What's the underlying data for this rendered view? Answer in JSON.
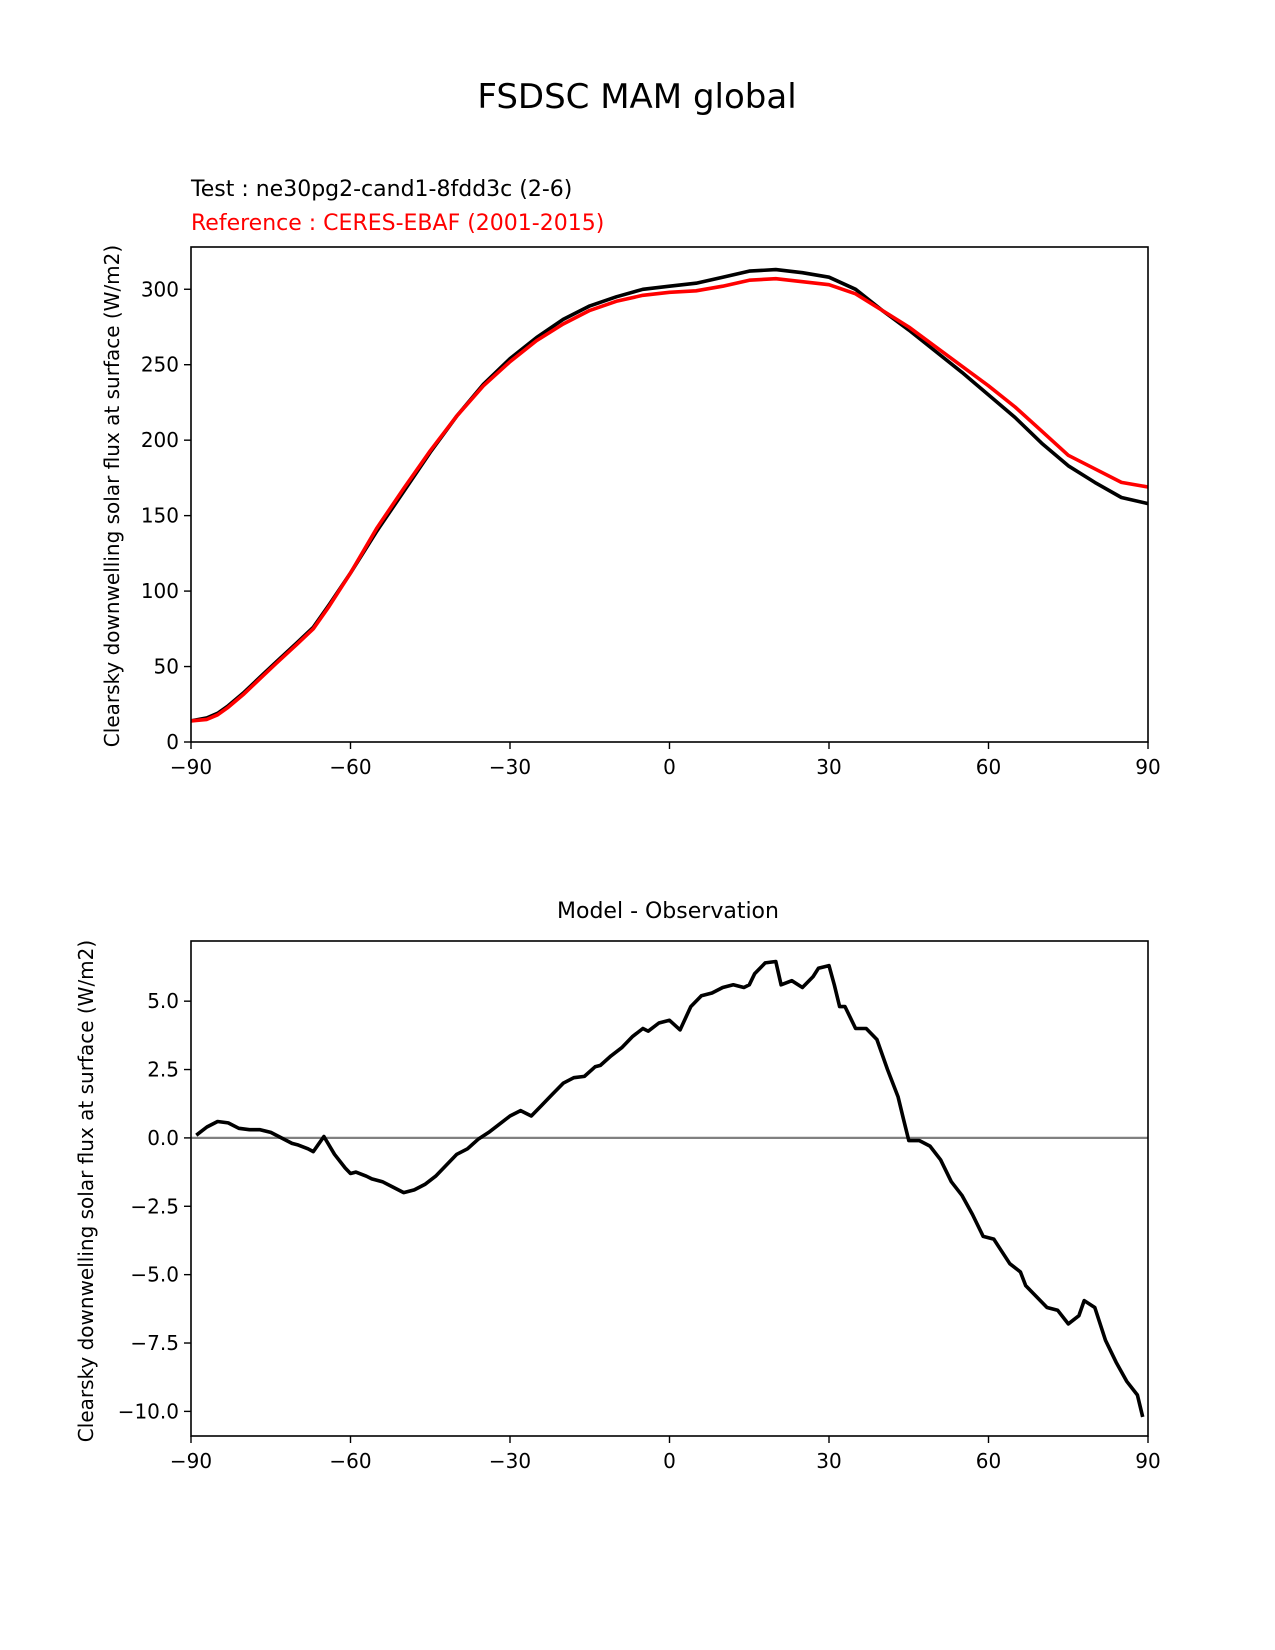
{
  "figure": {
    "title": "FSDSC MAM global"
  },
  "chart_data": [
    {
      "type": "line",
      "test_label": "Test : ne30pg2-cand1-8fdd3c (2-6)",
      "reference_label": "Reference : CERES-EBAF (2001-2015)",
      "title": "",
      "xlabel": "",
      "ylabel": "Clearsky downwelling solar flux at surface (W/m2)",
      "xlim": [
        -90,
        90
      ],
      "ylim": [
        0,
        328
      ],
      "xticks": [
        -90,
        -60,
        -30,
        0,
        30,
        60,
        90
      ],
      "xtick_labels": [
        "−90",
        "−60",
        "−30",
        "0",
        "30",
        "60",
        "90"
      ],
      "yticks": [
        0,
        50,
        100,
        150,
        200,
        250,
        300
      ],
      "ytick_labels": [
        "0",
        "50",
        "100",
        "150",
        "200",
        "250",
        "300"
      ],
      "grid": false,
      "series": [
        {
          "color": "#000000",
          "x": [
            -90,
            -87,
            -85,
            -83,
            -80,
            -77,
            -74,
            -70,
            -67,
            -64,
            -60,
            -55,
            -50,
            -45,
            -40,
            -35,
            -30,
            -25,
            -20,
            -15,
            -10,
            -5,
            0,
            5,
            10,
            15,
            20,
            25,
            30,
            35,
            40,
            45,
            50,
            55,
            60,
            65,
            70,
            75,
            80,
            85,
            90
          ],
          "y": [
            14,
            16,
            19,
            24,
            33,
            43,
            53,
            66,
            76,
            91,
            112,
            140,
            166,
            192,
            216,
            237,
            254,
            268,
            280,
            289,
            295,
            300,
            302,
            304,
            308,
            312,
            313,
            311,
            308,
            300,
            286,
            273,
            259,
            245,
            230,
            215,
            198,
            183,
            172,
            162,
            158
          ]
        },
        {
          "color": "#ff0000",
          "x": [
            -90,
            -87,
            -85,
            -83,
            -80,
            -77,
            -74,
            -70,
            -67,
            -64,
            -60,
            -55,
            -50,
            -45,
            -40,
            -35,
            -30,
            -25,
            -20,
            -15,
            -10,
            -5,
            0,
            5,
            10,
            15,
            20,
            25,
            30,
            35,
            40,
            45,
            50,
            55,
            60,
            65,
            70,
            75,
            80,
            85,
            90
          ],
          "y": [
            14,
            15,
            18,
            23,
            32,
            42,
            52,
            65,
            75,
            90,
            112,
            142,
            168,
            193,
            216,
            236,
            252,
            266,
            277,
            286,
            292,
            296,
            298,
            299,
            302,
            306,
            307,
            305,
            303,
            297,
            286,
            275,
            262,
            249,
            236,
            222,
            206,
            190,
            181,
            172,
            169
          ]
        }
      ]
    },
    {
      "type": "line",
      "title": "Model - Observation",
      "xlabel": "",
      "ylabel": "Clearsky downwelling solar flux at surface (W/m2)",
      "xlim": [
        -90,
        90
      ],
      "ylim": [
        -10.9,
        7.2
      ],
      "xticks": [
        -90,
        -60,
        -30,
        0,
        30,
        60,
        90
      ],
      "xtick_labels": [
        "−90",
        "−60",
        "−30",
        "0",
        "30",
        "60",
        "90"
      ],
      "yticks": [
        5.0,
        2.5,
        0.0,
        -2.5,
        -5.0,
        -7.5,
        -10.0
      ],
      "ytick_labels": [
        "5.0",
        "2.5",
        "0.0",
        "−2.5",
        "−5.0",
        "−7.5",
        "−10.0"
      ],
      "grid": false,
      "zero_line_color": "#808080",
      "series": [
        {
          "color": "#000000",
          "x": [
            -89,
            -87,
            -85,
            -83,
            -81,
            -79,
            -77,
            -75,
            -73,
            -71,
            -70,
            -68,
            -67,
            -65,
            -63,
            -61,
            -60,
            -59,
            -57,
            -56,
            -54,
            -52,
            -50,
            -48,
            -46,
            -44,
            -42,
            -40,
            -38,
            -36,
            -34,
            -32,
            -30,
            -28,
            -26,
            -24,
            -22,
            -20,
            -18,
            -16,
            -14,
            -13,
            -11,
            -9,
            -7,
            -5,
            -4,
            -2,
            0,
            2,
            4,
            6,
            8,
            10,
            12,
            14,
            15,
            16,
            18,
            20,
            21,
            23,
            25,
            27,
            28,
            30,
            31,
            32,
            33,
            35,
            37,
            39,
            41,
            43,
            44,
            45,
            47,
            49,
            51,
            53,
            55,
            57,
            59,
            61,
            62,
            64,
            66,
            67,
            69,
            71,
            73,
            75,
            77,
            78,
            80,
            82,
            84,
            86,
            88,
            89
          ],
          "y": [
            0.1,
            0.4,
            0.6,
            0.55,
            0.35,
            0.3,
            0.3,
            0.2,
            0.0,
            -0.2,
            -0.25,
            -0.4,
            -0.5,
            0.05,
            -0.6,
            -1.1,
            -1.3,
            -1.25,
            -1.4,
            -1.5,
            -1.6,
            -1.8,
            -2.0,
            -1.9,
            -1.7,
            -1.4,
            -1.0,
            -0.6,
            -0.4,
            -0.05,
            0.2,
            0.5,
            0.8,
            1.0,
            0.8,
            1.2,
            1.6,
            2.0,
            2.2,
            2.25,
            2.6,
            2.65,
            3.0,
            3.3,
            3.7,
            4.0,
            3.9,
            4.2,
            4.3,
            3.95,
            4.8,
            5.2,
            5.3,
            5.5,
            5.6,
            5.5,
            5.6,
            6.0,
            6.4,
            6.45,
            5.6,
            5.75,
            5.5,
            5.9,
            6.2,
            6.3,
            5.6,
            4.8,
            4.8,
            4.0,
            4.0,
            3.6,
            2.5,
            1.5,
            0.7,
            -0.1,
            -0.1,
            -0.3,
            -0.8,
            -1.6,
            -2.1,
            -2.8,
            -3.6,
            -3.7,
            -4.0,
            -4.6,
            -4.9,
            -5.4,
            -5.8,
            -6.2,
            -6.3,
            -6.8,
            -6.5,
            -5.95,
            -6.2,
            -7.4,
            -8.2,
            -8.9,
            -9.4,
            -10.2
          ]
        }
      ]
    }
  ]
}
